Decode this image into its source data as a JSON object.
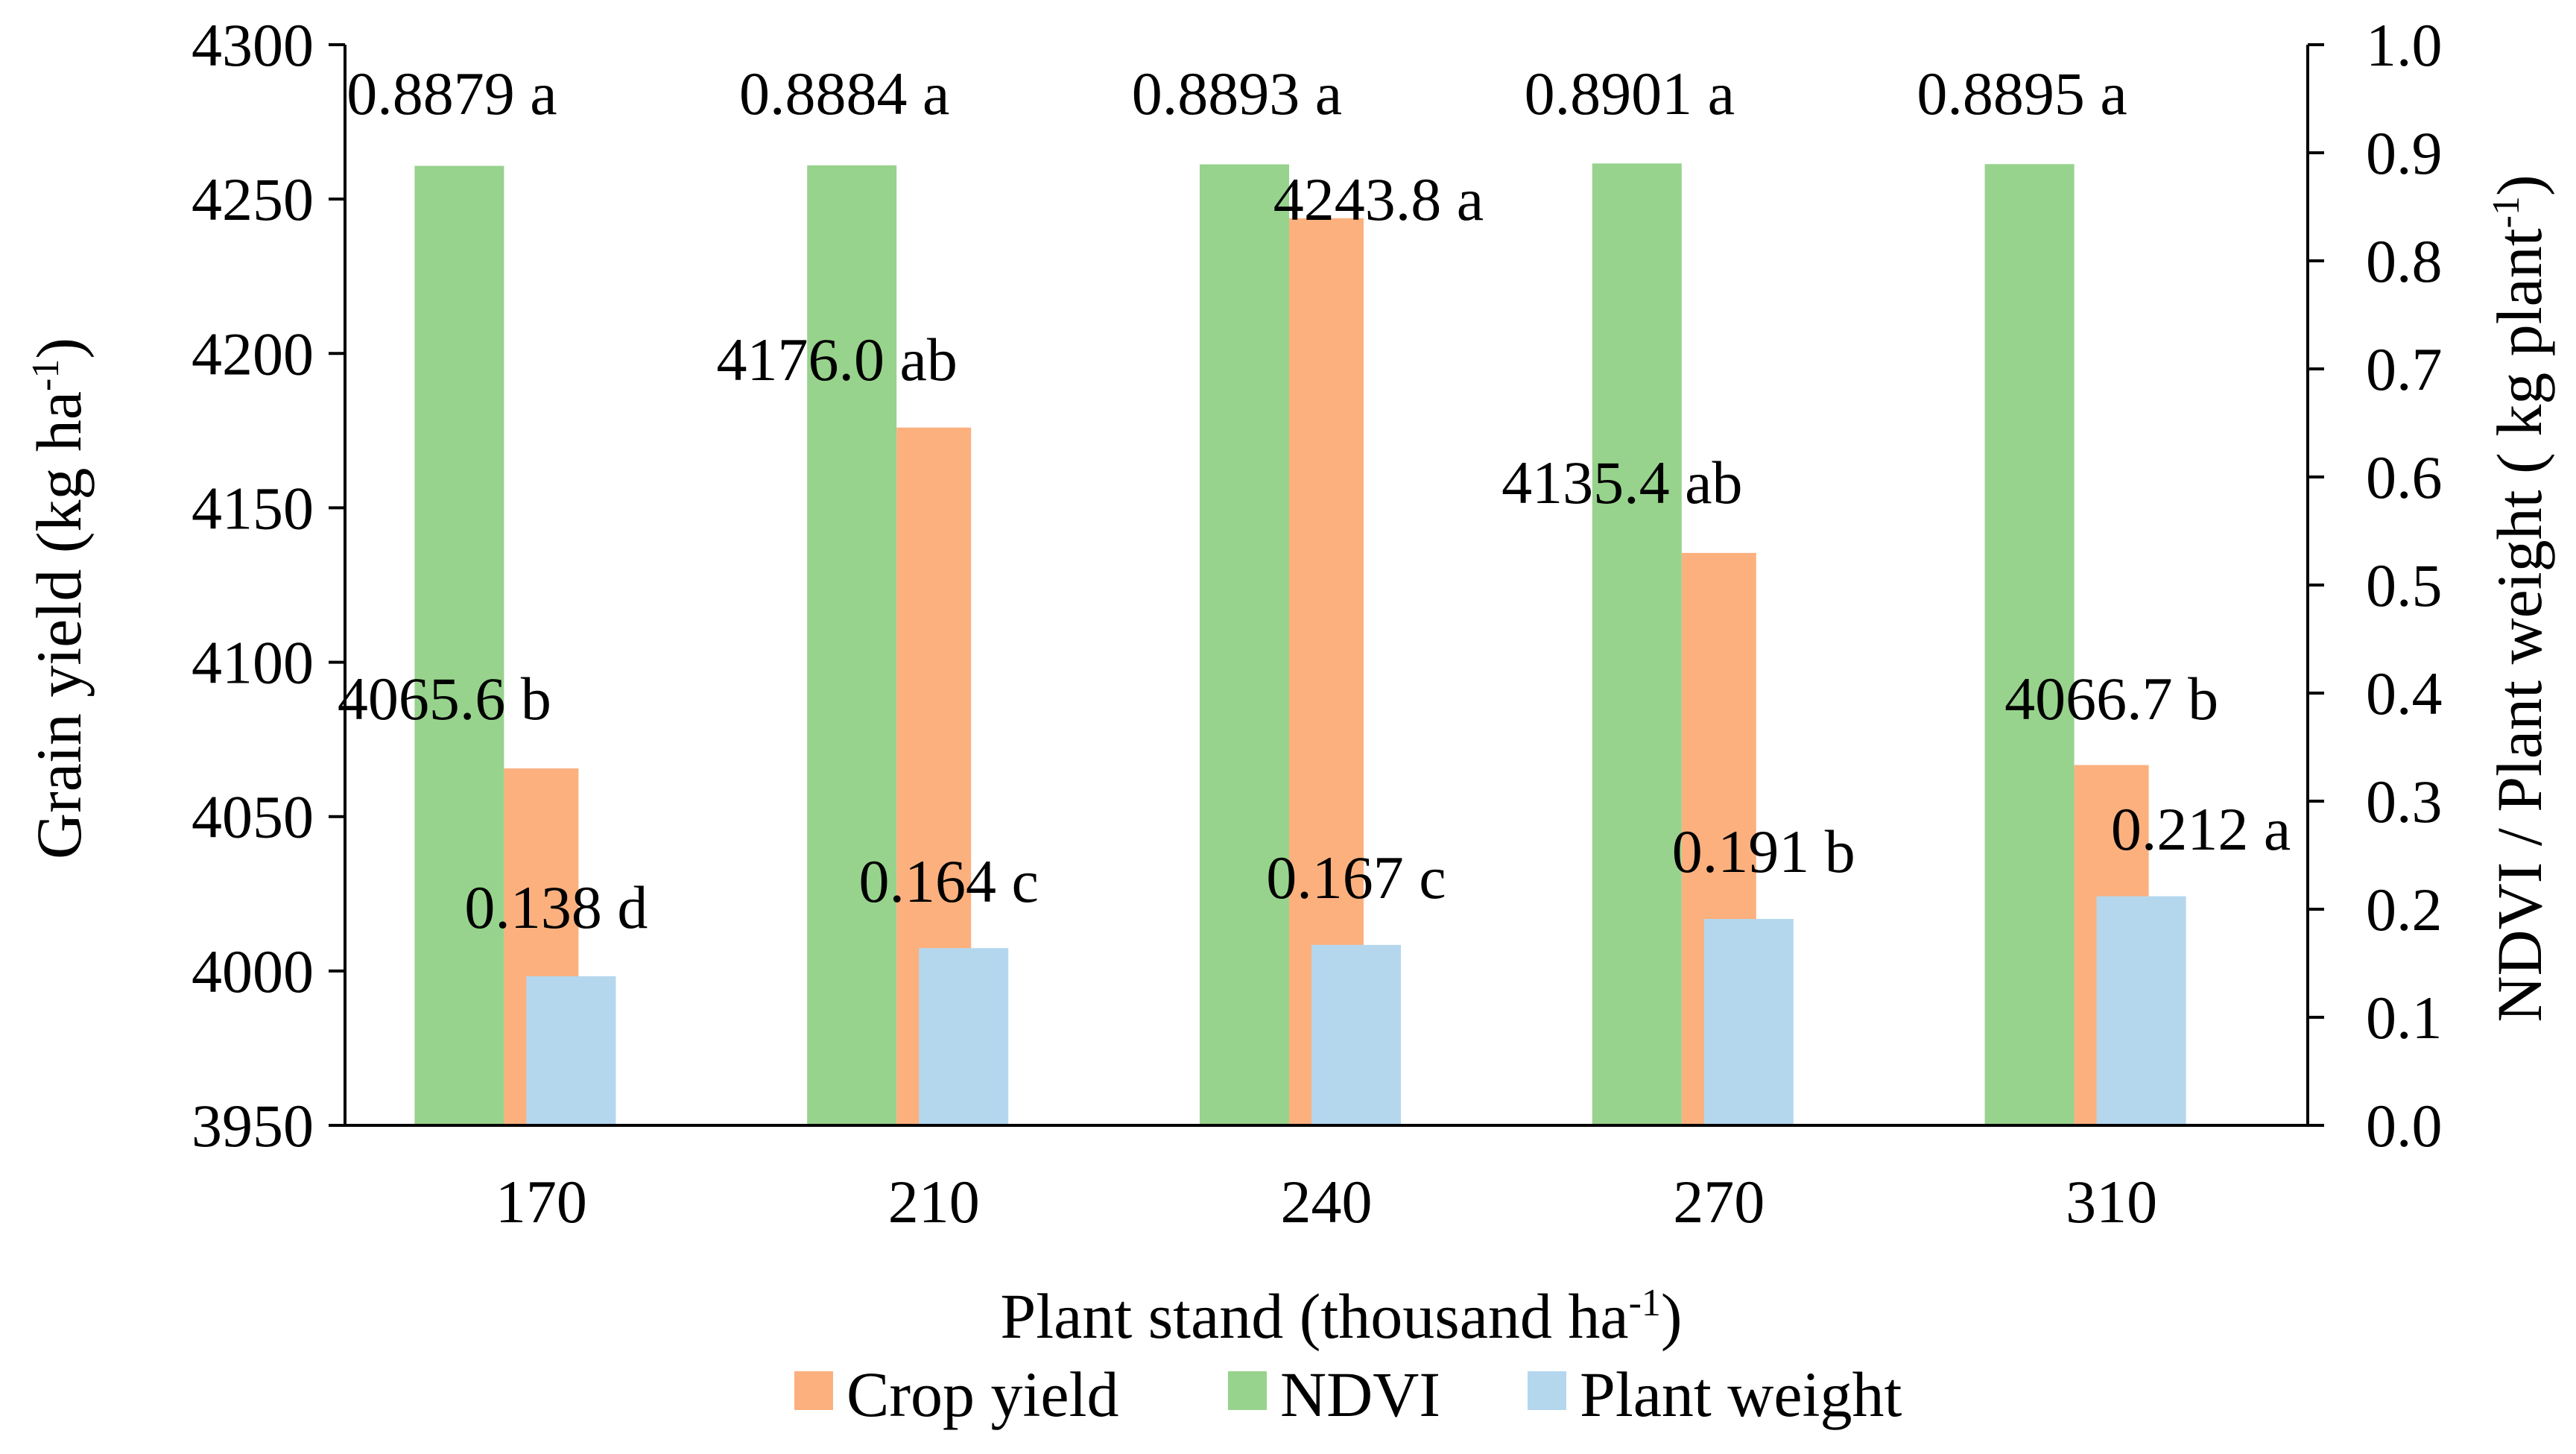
{
  "chart_data": {
    "type": "bar",
    "categories": [
      "170",
      "210",
      "240",
      "270",
      "310"
    ],
    "xlabel_main": "Plant stand (thousand ha",
    "xlabel_sup": "-1",
    "xlabel_end": ")",
    "ylabel_left_main": "Grain yield (kg ha",
    "ylabel_left_sup": "-1",
    "ylabel_left_end": ")",
    "ylabel_right_main": "NDVI / Plant weight ( kg plant",
    "ylabel_right_sup": "-1",
    "ylabel_right_end": ")",
    "ylim_left": [
      3950,
      4300
    ],
    "yticks_left": [
      "3950",
      "4000",
      "4050",
      "4100",
      "4150",
      "4200",
      "4250",
      "4300"
    ],
    "ylim_right": [
      0.0,
      1.0
    ],
    "yticks_right": [
      "0.0",
      "0.1",
      "0.2",
      "0.3",
      "0.4",
      "0.5",
      "0.6",
      "0.7",
      "0.8",
      "0.9",
      "1.0"
    ],
    "grid": false,
    "legend_position": "bottom",
    "series": [
      {
        "name": "NDVI",
        "axis": "right",
        "color": "#97d38c",
        "values": [
          0.8879,
          0.8884,
          0.8893,
          0.8901,
          0.8895
        ],
        "labels": [
          "0.8879 a",
          "0.8884 a",
          "0.8893 a",
          "0.8901 a",
          "0.8895 a"
        ]
      },
      {
        "name": "Crop yield",
        "axis": "left",
        "color": "#fbb07e",
        "values": [
          4065.6,
          4176.0,
          4243.8,
          4135.4,
          4066.7
        ],
        "labels": [
          "4065.6 b",
          "4176.0 ab",
          "4243.8 a",
          "4135.4 ab",
          "4066.7 b"
        ]
      },
      {
        "name": "Plant weight",
        "axis": "right",
        "color": "#b4d7ee",
        "values": [
          0.138,
          0.164,
          0.167,
          0.191,
          0.212
        ],
        "labels": [
          "0.138 d",
          "0.164 c",
          "0.167 c",
          "0.191 b",
          "0.212 a"
        ]
      }
    ],
    "legend": [
      {
        "name": "Crop yield",
        "color": "#fbb07e"
      },
      {
        "name": "NDVI",
        "color": "#97d38c"
      },
      {
        "name": "Plant weight",
        "color": "#b4d7ee"
      }
    ]
  }
}
